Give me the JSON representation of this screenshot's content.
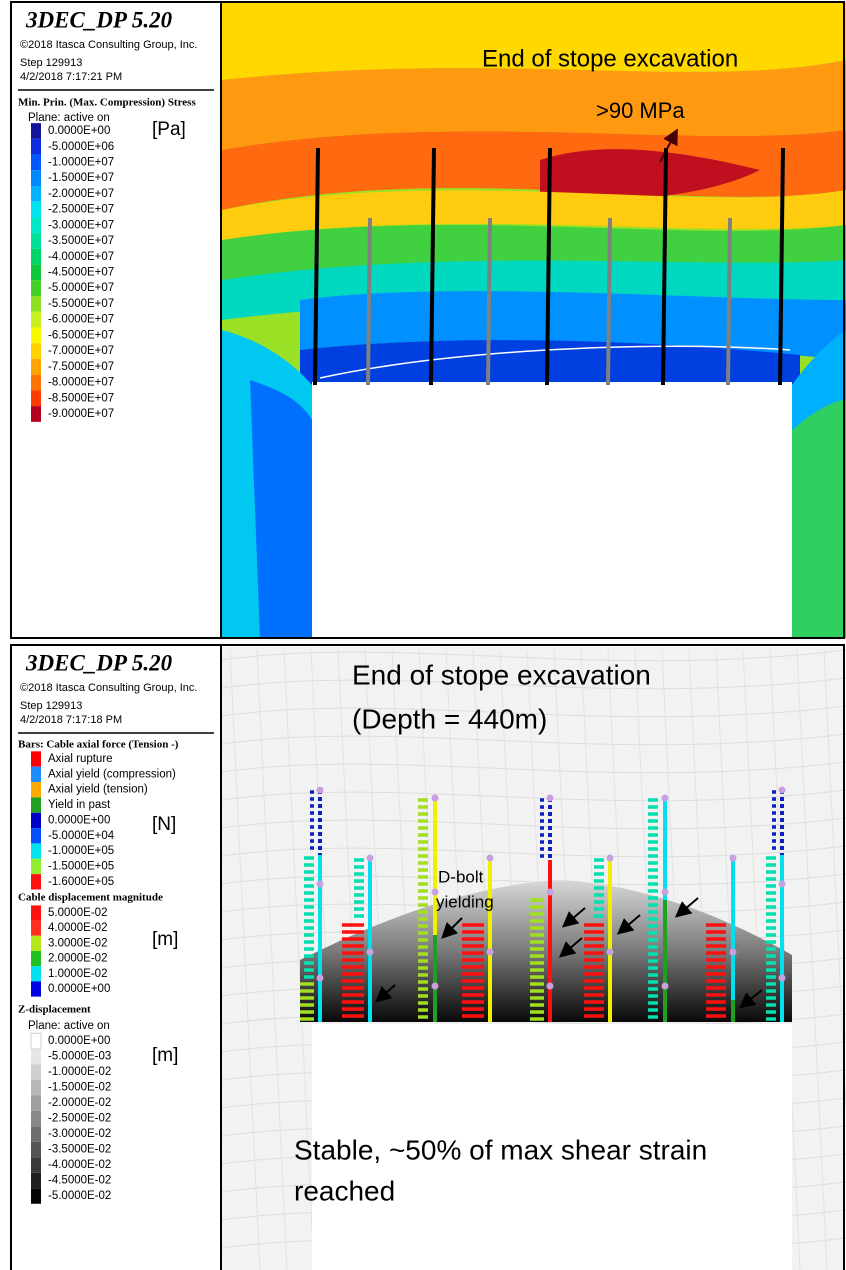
{
  "panels": [
    {
      "header": {
        "title": "3DEC_DP 5.20",
        "copyright": "©2018 Itasca Consulting Group, Inc.",
        "step": "Step 129913",
        "date": "4/2/2018 7:17:21 PM"
      },
      "legends": [
        {
          "title": "Min. Prin. (Max. Compression) Stress",
          "plane": "Plane: active on",
          "unit": "[Pa]",
          "items": [
            {
              "label": "0.0000E+00",
              "color": "#14149a"
            },
            {
              "label": "-5.0000E+06",
              "color": "#0a2ee0"
            },
            {
              "label": "-1.0000E+07",
              "color": "#0056ff"
            },
            {
              "label": "-1.5000E+07",
              "color": "#0088ff"
            },
            {
              "label": "-2.0000E+07",
              "color": "#00b4ff"
            },
            {
              "label": "-2.5000E+07",
              "color": "#00e4f0"
            },
            {
              "label": "-3.0000E+07",
              "color": "#00e8c4"
            },
            {
              "label": "-3.5000E+07",
              "color": "#00e098"
            },
            {
              "label": "-4.0000E+07",
              "color": "#00d468"
            },
            {
              "label": "-4.5000E+07",
              "color": "#10c83c"
            },
            {
              "label": "-5.0000E+07",
              "color": "#44d024"
            },
            {
              "label": "-5.5000E+07",
              "color": "#8ce020"
            },
            {
              "label": "-6.0000E+07",
              "color": "#c8f020"
            },
            {
              "label": "-6.5000E+07",
              "color": "#f8f800"
            },
            {
              "label": "-7.0000E+07",
              "color": "#ffd200"
            },
            {
              "label": "-7.5000E+07",
              "color": "#ffa400"
            },
            {
              "label": "-8.0000E+07",
              "color": "#ff7400"
            },
            {
              "label": "-8.5000E+07",
              "color": "#ff3c00"
            },
            {
              "label": "-9.0000E+07",
              "color": "#b40020"
            }
          ]
        }
      ],
      "annotations": [
        "End of stope excavation",
        ">90 MPa"
      ]
    },
    {
      "header": {
        "title": "3DEC_DP 5.20",
        "copyright": "©2018 Itasca Consulting Group, Inc.",
        "step": "Step 129913",
        "date": "4/2/2018 7:17:18 PM"
      },
      "legends": [
        {
          "title": "Bars: Cable axial force (Tension -)",
          "unit": "[N]",
          "items": [
            {
              "label": "Axial rupture",
              "color": "#ff0000"
            },
            {
              "label": "Axial yield (compression)",
              "color": "#1e8cff"
            },
            {
              "label": "Axial yield (tension)",
              "color": "#ffaa00"
            },
            {
              "label": "Yield in past",
              "color": "#22a022"
            },
            {
              "label": "0.0000E+00",
              "color": "#0000c8"
            },
            {
              "label": "-5.0000E+04",
              "color": "#0050ff"
            },
            {
              "label": "-1.0000E+05",
              "color": "#00e4f0"
            },
            {
              "label": "-1.5000E+05",
              "color": "#90f030"
            },
            {
              "label": "-1.6000E+05",
              "color": "#ff1010"
            }
          ]
        },
        {
          "title": "Cable displacement magnitude",
          "unit": "[m]",
          "items": [
            {
              "label": "5.0000E-02",
              "color": "#ff1010"
            },
            {
              "label": "4.0000E-02",
              "color": "#ff3020"
            },
            {
              "label": "3.0000E-02",
              "color": "#b4e81c"
            },
            {
              "label": "2.0000E-02",
              "color": "#20c020"
            },
            {
              "label": "1.0000E-02",
              "color": "#00e0f0"
            },
            {
              "label": "0.0000E+00",
              "color": "#0000e0"
            }
          ]
        },
        {
          "title": "Z-displacement",
          "plane": "Plane: active on",
          "unit": "[m]",
          "items": [
            {
              "label": "0.0000E+00",
              "color": "#ffffff"
            },
            {
              "label": "-5.0000E-03",
              "color": "#e6e6e6"
            },
            {
              "label": "-1.0000E-02",
              "color": "#cfcfcf"
            },
            {
              "label": "-1.5000E-02",
              "color": "#b8b8b8"
            },
            {
              "label": "-2.0000E-02",
              "color": "#a0a0a0"
            },
            {
              "label": "-2.5000E-02",
              "color": "#888888"
            },
            {
              "label": "-3.0000E-02",
              "color": "#6e6e6e"
            },
            {
              "label": "-3.5000E-02",
              "color": "#555555"
            },
            {
              "label": "-4.0000E-02",
              "color": "#3a3a3a"
            },
            {
              "label": "-4.5000E-02",
              "color": "#202020"
            },
            {
              "label": "-5.0000E-02",
              "color": "#050505"
            }
          ]
        }
      ],
      "annotations": [
        "End of stope excavation",
        "(Depth = 440m)",
        "D-bolt",
        "yielding",
        "Stable, ~50% of max shear strain",
        "reached"
      ]
    }
  ]
}
